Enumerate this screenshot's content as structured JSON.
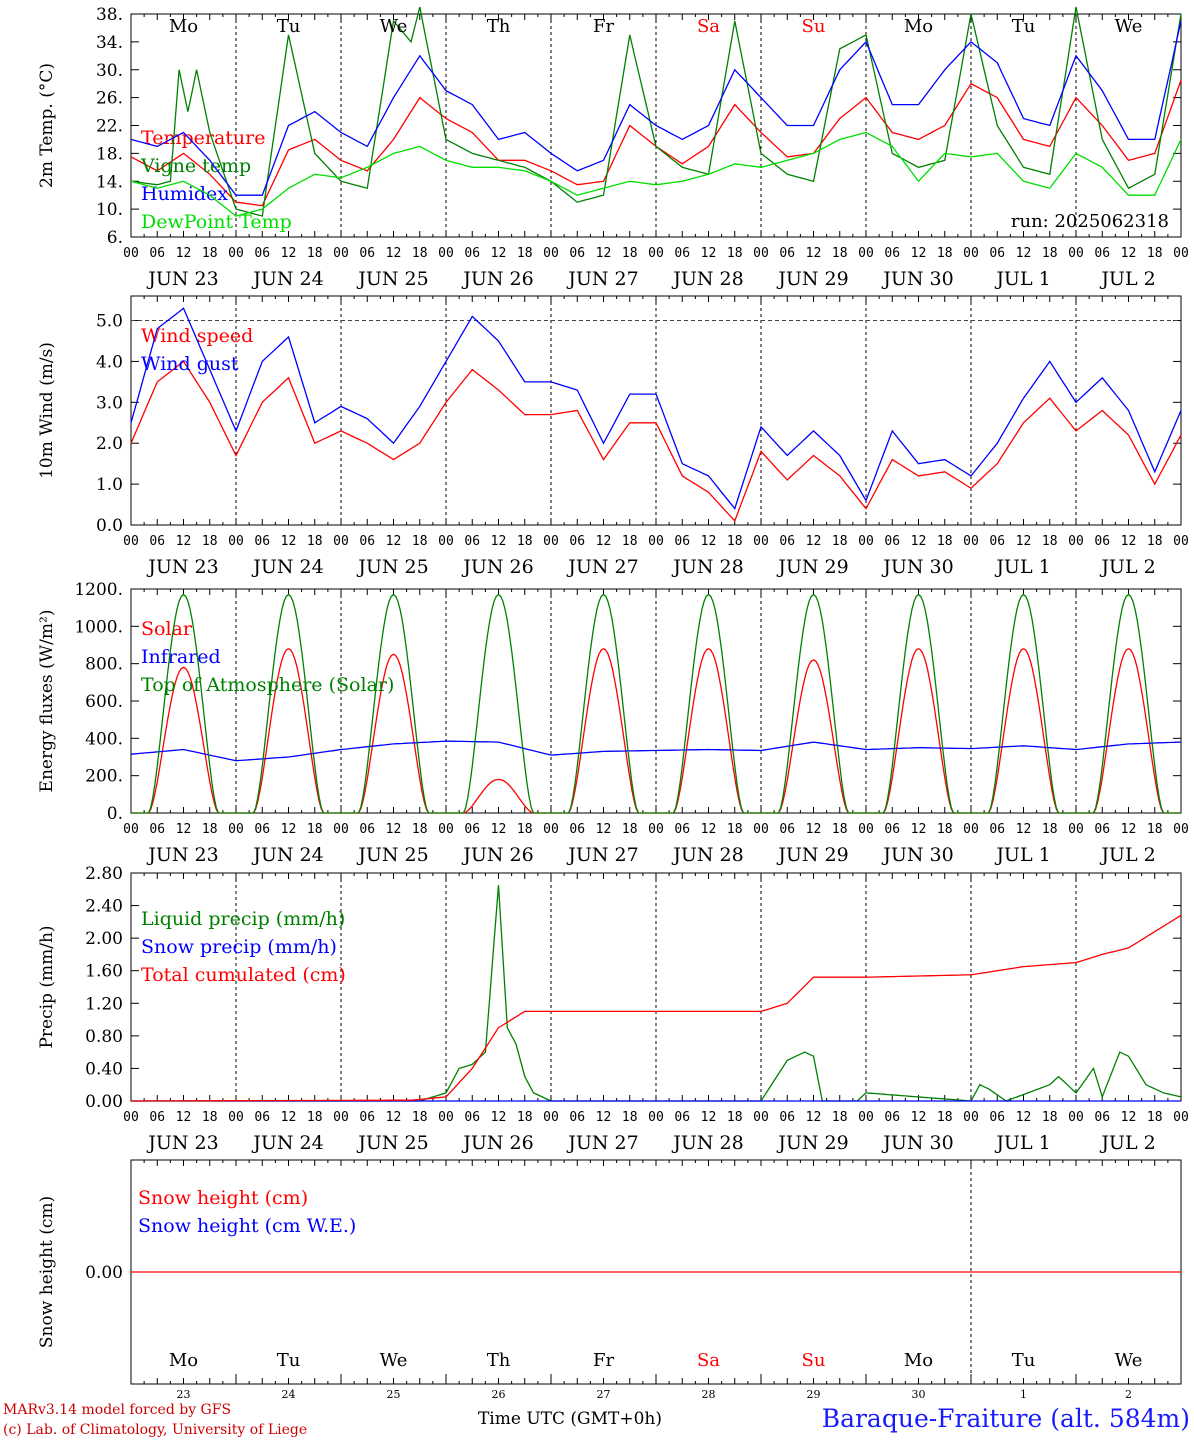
{
  "colors": {
    "red": "#ff0000",
    "green": "#008000",
    "blue": "#0000ff",
    "lightgreen": "#00dd00",
    "darkred": "#cc0000",
    "black": "#000000",
    "title_blue": "#1a1aff"
  },
  "shared": {
    "day_names": [
      "Mo",
      "Tu",
      "We",
      "Th",
      "Fr",
      "Sa",
      "Su",
      "Mo",
      "Tu",
      "We"
    ],
    "weekend_days": [
      "Sa",
      "Su"
    ],
    "date_labels": [
      "JUN 23",
      "JUN 24",
      "JUN 25",
      "JUN 26",
      "JUN 27",
      "JUN 28",
      "JUN 29",
      "JUN 30",
      "JUL  1",
      "JUL  2"
    ],
    "hour_ticks": [
      "00",
      "06",
      "12",
      "18"
    ],
    "day_numbers": [
      "23",
      "24",
      "25",
      "26",
      "27",
      "28",
      "29",
      "30",
      "1",
      "2"
    ]
  },
  "footer": {
    "model_line": "MARv3.14 model forced by GFS",
    "lab_line": "(c) Lab. of Climatology, University of Liege",
    "time_label": "Time UTC (GMT+0h)",
    "station": "Baraque-Fraiture (alt. 584m)"
  },
  "chart_data": [
    {
      "type": "line",
      "ylabel": "2m Temp. (°C)",
      "ylim": [
        6,
        38
      ],
      "yticks": [
        "6.",
        "10.",
        "14.",
        "18.",
        "22.",
        "26.",
        "30.",
        "34.",
        "38."
      ],
      "annotation": "run: 2025062318",
      "x_unit": "hours since JUN 23 00 UTC",
      "series": [
        {
          "name": "Temperature",
          "color": "red",
          "x": [
            0,
            6,
            12,
            18,
            24,
            30,
            36,
            42,
            48,
            54,
            60,
            66,
            72,
            78,
            84,
            90,
            96,
            102,
            108,
            114,
            120,
            126,
            132,
            138,
            144,
            150,
            156,
            162,
            168,
            174,
            180,
            186,
            192,
            198,
            204,
            210,
            216,
            222,
            228,
            234,
            240
          ],
          "values": [
            17.5,
            15.5,
            18,
            15,
            11,
            10.5,
            18.5,
            20,
            17,
            15.5,
            20,
            26,
            23,
            21,
            17,
            17,
            15.5,
            13.5,
            14,
            22,
            19,
            16.5,
            19,
            25,
            21,
            17.5,
            18,
            23,
            26,
            21,
            20,
            22,
            28,
            26,
            20,
            19,
            26,
            22,
            17,
            18,
            28.5
          ]
        },
        {
          "name": "Vigne temp",
          "color": "green",
          "x": [
            0,
            6,
            9,
            11,
            13,
            15,
            18,
            24,
            30,
            36,
            42,
            48,
            54,
            60,
            64,
            66,
            72,
            78,
            84,
            90,
            96,
            102,
            108,
            114,
            120,
            126,
            132,
            138,
            144,
            150,
            156,
            162,
            168,
            174,
            180,
            186,
            192,
            198,
            204,
            210,
            216,
            222,
            228,
            234,
            240
          ],
          "values": [
            14,
            13.5,
            14,
            30,
            24,
            30,
            21,
            10,
            9,
            35,
            18,
            14,
            13,
            37,
            34,
            39,
            20,
            18,
            17,
            16,
            14,
            11,
            12,
            35,
            19,
            16,
            15,
            37,
            18,
            15,
            14,
            33,
            35,
            18,
            16,
            17,
            38,
            22,
            16,
            15,
            39,
            20,
            13,
            15,
            38
          ]
        },
        {
          "name": "Humidex",
          "color": "blue",
          "x": [
            0,
            6,
            12,
            18,
            24,
            30,
            36,
            42,
            48,
            54,
            60,
            66,
            72,
            78,
            84,
            90,
            96,
            102,
            108,
            114,
            120,
            126,
            132,
            138,
            144,
            150,
            156,
            162,
            168,
            174,
            180,
            186,
            192,
            198,
            204,
            210,
            216,
            222,
            228,
            234,
            240
          ],
          "values": [
            20,
            19,
            21,
            17,
            12,
            12,
            22,
            24,
            21,
            19,
            26,
            32,
            27,
            25,
            20,
            21,
            18,
            15.5,
            17,
            25,
            22,
            20,
            22,
            30,
            26,
            22,
            22,
            30,
            34,
            25,
            25,
            30,
            34,
            31,
            23,
            22,
            32,
            27,
            20,
            20,
            37
          ]
        },
        {
          "name": "DewPoint Temp",
          "color": "lightgreen",
          "x": [
            0,
            6,
            12,
            18,
            24,
            30,
            36,
            42,
            48,
            54,
            60,
            66,
            72,
            78,
            84,
            90,
            96,
            102,
            108,
            114,
            120,
            126,
            132,
            138,
            144,
            150,
            156,
            162,
            168,
            174,
            180,
            186,
            192,
            198,
            204,
            210,
            216,
            222,
            228,
            234,
            240
          ],
          "values": [
            14,
            13,
            14,
            12,
            9,
            10,
            13,
            15,
            14.5,
            16,
            18,
            19,
            17,
            16,
            16,
            15.5,
            14,
            12,
            13,
            14,
            13.5,
            14,
            15,
            16.5,
            16,
            17,
            18,
            20,
            21,
            19,
            14,
            18,
            17.5,
            18,
            14,
            13,
            18,
            16,
            12,
            12,
            20
          ]
        }
      ]
    },
    {
      "type": "line",
      "ylabel": "10m Wind (m/s)",
      "ylim": [
        0,
        5.6
      ],
      "yticks": [
        "0.0",
        "1.0",
        "2.0",
        "3.0",
        "4.0",
        "5.0"
      ],
      "reference_line": 5.0,
      "series": [
        {
          "name": "Wind speed",
          "color": "red",
          "x": [
            0,
            6,
            12,
            18,
            24,
            30,
            36,
            42,
            48,
            54,
            60,
            66,
            72,
            78,
            84,
            90,
            96,
            102,
            108,
            114,
            120,
            126,
            132,
            138,
            144,
            150,
            156,
            162,
            168,
            174,
            180,
            186,
            192,
            198,
            204,
            210,
            216,
            222,
            228,
            234,
            240
          ],
          "values": [
            2.0,
            3.5,
            4.0,
            3.0,
            1.7,
            3.0,
            3.6,
            2.0,
            2.3,
            2.0,
            1.6,
            2.0,
            3.0,
            3.8,
            3.3,
            2.7,
            2.7,
            2.8,
            1.6,
            2.5,
            2.5,
            1.2,
            0.8,
            0.1,
            1.8,
            1.1,
            1.7,
            1.2,
            0.4,
            1.6,
            1.2,
            1.3,
            0.9,
            1.5,
            2.5,
            3.1,
            2.3,
            2.8,
            2.2,
            1.0,
            2.2
          ]
        },
        {
          "name": "Wind gust",
          "color": "blue",
          "x": [
            0,
            6,
            12,
            18,
            24,
            30,
            36,
            42,
            48,
            54,
            60,
            66,
            72,
            78,
            84,
            90,
            96,
            102,
            108,
            114,
            120,
            126,
            132,
            138,
            144,
            150,
            156,
            162,
            168,
            174,
            180,
            186,
            192,
            198,
            204,
            210,
            216,
            222,
            228,
            234,
            240
          ],
          "values": [
            2.5,
            4.8,
            5.3,
            3.8,
            2.3,
            4.0,
            4.6,
            2.5,
            2.9,
            2.6,
            2.0,
            2.9,
            4.0,
            5.1,
            4.5,
            3.5,
            3.5,
            3.3,
            2.0,
            3.2,
            3.2,
            1.5,
            1.2,
            0.4,
            2.4,
            1.7,
            2.3,
            1.7,
            0.6,
            2.3,
            1.5,
            1.6,
            1.2,
            2.0,
            3.1,
            4.0,
            3.0,
            3.6,
            2.8,
            1.3,
            2.8
          ]
        }
      ]
    },
    {
      "type": "line",
      "ylabel": "Energy fluxes (W/m²)",
      "ylim": [
        0,
        1200
      ],
      "yticks": [
        "0.",
        "200.",
        "400.",
        "600.",
        "800.",
        "1000.",
        "1200."
      ],
      "series": [
        {
          "name": "Solar",
          "color": "red",
          "daily_peaks": [
            780,
            880,
            850,
            180,
            880,
            880,
            820,
            880,
            880,
            880
          ]
        },
        {
          "name": "Infrared",
          "color": "blue",
          "x": [
            0,
            12,
            24,
            36,
            48,
            60,
            72,
            84,
            96,
            108,
            120,
            132,
            144,
            156,
            168,
            180,
            192,
            204,
            216,
            228,
            240
          ],
          "values": [
            315,
            340,
            280,
            300,
            340,
            370,
            385,
            380,
            310,
            330,
            335,
            340,
            335,
            380,
            340,
            350,
            345,
            360,
            340,
            370,
            380
          ]
        },
        {
          "name": "Top of Atmosphere (Solar)",
          "color": "green",
          "daily_peak": 1170
        }
      ]
    },
    {
      "type": "line",
      "ylabel": "Precip (mm/h)",
      "ylim": [
        0,
        2.8
      ],
      "yticks": [
        "0.00",
        "0.40",
        "0.80",
        "1.20",
        "1.60",
        "2.00",
        "2.40",
        "2.80"
      ],
      "series": [
        {
          "name": "Liquid precip (mm/h)",
          "color": "green",
          "x": [
            0,
            66,
            72,
            75,
            78,
            81,
            84,
            86,
            88,
            90,
            92,
            96,
            144,
            150,
            154,
            156,
            158,
            166,
            168,
            192,
            194,
            196,
            200,
            210,
            212,
            216,
            220,
            222,
            226,
            228,
            232,
            236,
            240
          ],
          "values": [
            0,
            0,
            0.1,
            0.4,
            0.45,
            0.6,
            2.65,
            0.9,
            0.7,
            0.3,
            0.1,
            0,
            0,
            0.5,
            0.6,
            0.55,
            0,
            0,
            0.1,
            0,
            0.2,
            0.15,
            0,
            0.2,
            0.3,
            0.1,
            0.4,
            0.05,
            0.6,
            0.55,
            0.2,
            0.1,
            0.05
          ]
        },
        {
          "name": "Snow precip (mm/h)",
          "color": "blue",
          "x": [
            0,
            240
          ],
          "values": [
            0,
            0
          ]
        },
        {
          "name": "Total cumulated (cm)",
          "color": "red",
          "x": [
            0,
            64,
            72,
            78,
            84,
            90,
            144,
            150,
            156,
            168,
            192,
            204,
            216,
            222,
            228,
            240
          ],
          "values": [
            0.0,
            0.01,
            0.05,
            0.4,
            0.9,
            1.1,
            1.1,
            1.2,
            1.52,
            1.52,
            1.55,
            1.65,
            1.7,
            1.8,
            1.88,
            2.28
          ]
        }
      ]
    },
    {
      "type": "line",
      "ylabel": "Snow height (cm)",
      "ylim": [
        -1,
        1
      ],
      "yticks": [
        "0.00"
      ],
      "series": [
        {
          "name": "Snow height (cm)",
          "color": "red",
          "x": [
            0,
            240
          ],
          "values": [
            0,
            0
          ]
        },
        {
          "name": "Snow height (cm W.E.)",
          "color": "blue"
        }
      ]
    }
  ]
}
